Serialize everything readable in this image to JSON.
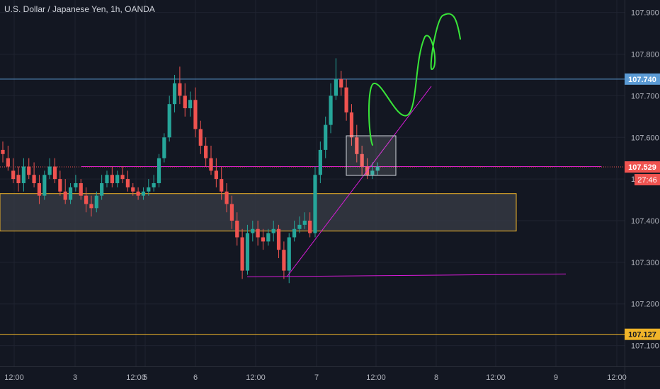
{
  "header": {
    "title": "U.S. Dollar / Japanese Yen, 1h, OANDA"
  },
  "colors": {
    "background": "#131722",
    "grid": "#1f2330",
    "axis_text": "#b2b5be",
    "bull": "#26a69a",
    "bear": "#ef5350",
    "resistance_line": "#5b9bd5",
    "support_line": "#f0b429",
    "zone_border": "#f0b429",
    "zone_fill": "#3a3d47",
    "magenta": "#d81bd8",
    "arrow": "#39e639",
    "price_badge": "#ef5350",
    "resistance_badge": "#5b9bd5",
    "support_badge": "#f0b429"
  },
  "chart_data": {
    "type": "candlestick",
    "title": "U.S. Dollar / Japanese Yen, 1h, OANDA",
    "ylim": [
      107.05,
      107.93
    ],
    "y_ticks": [
      "107.900",
      "107.800",
      "107.700",
      "107.600",
      "107.500",
      "107.400",
      "107.300",
      "107.200",
      "107.100"
    ],
    "x_ticks": [
      "12:00",
      "3",
      "12:00",
      "5",
      "6",
      "12:00",
      "7",
      "12:00",
      "8",
      "12:00",
      "9",
      "12:00"
    ],
    "annotations": {
      "resistance": 107.74,
      "resistance_label": "107.740",
      "support": 107.127,
      "support_label": "107.127",
      "last_price": 107.529,
      "last_price_label": "107.529",
      "countdown": "27:46",
      "horizontal_magenta": 107.53,
      "zone_top": 107.465,
      "zone_bottom": 107.375,
      "bottom_line_left": 107.265,
      "bottom_line_right": 107.272
    },
    "candles": [
      [
        107.57,
        107.59,
        107.56,
        107.54
      ],
      [
        107.55,
        107.58,
        107.53,
        107.52
      ],
      [
        107.52,
        107.55,
        107.5,
        107.49
      ],
      [
        107.51,
        107.53,
        107.49,
        107.47
      ],
      [
        107.49,
        107.55,
        107.53,
        107.47
      ],
      [
        107.53,
        107.55,
        107.51,
        107.5
      ],
      [
        107.51,
        107.54,
        107.49,
        107.48
      ],
      [
        107.49,
        107.51,
        107.46,
        107.44
      ],
      [
        107.46,
        107.52,
        107.51,
        107.45
      ],
      [
        107.51,
        107.55,
        107.53,
        107.5
      ],
      [
        107.53,
        107.55,
        107.5,
        107.49
      ],
      [
        107.5,
        107.52,
        107.47,
        107.46
      ],
      [
        107.47,
        107.5,
        107.45,
        107.44
      ],
      [
        107.45,
        107.49,
        107.48,
        107.44
      ],
      [
        107.48,
        107.51,
        107.49,
        107.47
      ],
      [
        107.49,
        107.5,
        107.46,
        107.45
      ],
      [
        107.46,
        107.48,
        107.44,
        107.42
      ],
      [
        107.44,
        107.46,
        107.43,
        107.41
      ],
      [
        107.43,
        107.47,
        107.46,
        107.42
      ],
      [
        107.46,
        107.51,
        107.49,
        107.45
      ],
      [
        107.49,
        107.52,
        107.51,
        107.48
      ],
      [
        107.51,
        107.53,
        107.49,
        107.48
      ],
      [
        107.49,
        107.52,
        107.51,
        107.48
      ],
      [
        107.51,
        107.53,
        107.5,
        107.49
      ],
      [
        107.5,
        107.52,
        107.48,
        107.47
      ],
      [
        107.48,
        107.49,
        107.47,
        107.46
      ],
      [
        107.47,
        107.48,
        107.46,
        107.45
      ],
      [
        107.46,
        107.48,
        107.47,
        107.45
      ],
      [
        107.47,
        107.5,
        107.48,
        107.46
      ],
      [
        107.48,
        107.51,
        107.49,
        107.47
      ],
      [
        107.49,
        107.56,
        107.55,
        107.48
      ],
      [
        107.55,
        107.61,
        107.6,
        107.54
      ],
      [
        107.6,
        107.7,
        107.68,
        107.59
      ],
      [
        107.68,
        107.75,
        107.73,
        107.66
      ],
      [
        107.73,
        107.77,
        107.7,
        107.68
      ],
      [
        107.7,
        107.73,
        107.67,
        107.65
      ],
      [
        107.67,
        107.71,
        107.69,
        107.65
      ],
      [
        107.69,
        107.72,
        107.62,
        107.6
      ],
      [
        107.62,
        107.64,
        107.58,
        107.56
      ],
      [
        107.58,
        107.6,
        107.55,
        107.53
      ],
      [
        107.55,
        107.58,
        107.52,
        107.51
      ],
      [
        107.52,
        107.55,
        107.5,
        107.48
      ],
      [
        107.5,
        107.53,
        107.47,
        107.45
      ],
      [
        107.47,
        107.49,
        107.44,
        107.42
      ],
      [
        107.44,
        107.46,
        107.4,
        107.38
      ],
      [
        107.4,
        107.42,
        107.36,
        107.34
      ],
      [
        107.36,
        107.38,
        107.28,
        107.26
      ],
      [
        107.28,
        107.39,
        107.37,
        107.27
      ],
      [
        107.37,
        107.4,
        107.38,
        107.35
      ],
      [
        107.38,
        107.4,
        107.36,
        107.34
      ],
      [
        107.36,
        107.38,
        107.35,
        107.33
      ],
      [
        107.35,
        107.38,
        107.37,
        107.34
      ],
      [
        107.37,
        107.4,
        107.38,
        107.35
      ],
      [
        107.38,
        107.39,
        107.33,
        107.31
      ],
      [
        107.33,
        107.35,
        107.28,
        107.26
      ],
      [
        107.28,
        107.37,
        107.36,
        107.25
      ],
      [
        107.36,
        107.4,
        107.38,
        107.35
      ],
      [
        107.38,
        107.41,
        107.39,
        107.37
      ],
      [
        107.39,
        107.42,
        107.4,
        107.38
      ],
      [
        107.4,
        107.42,
        107.37,
        107.36
      ],
      [
        107.37,
        107.53,
        107.51,
        107.36
      ],
      [
        107.51,
        107.59,
        107.57,
        107.49
      ],
      [
        107.57,
        107.65,
        107.63,
        107.55
      ],
      [
        107.63,
        107.73,
        107.7,
        107.61
      ],
      [
        107.7,
        107.79,
        107.74,
        107.69
      ],
      [
        107.74,
        107.76,
        107.72,
        107.7
      ],
      [
        107.72,
        107.74,
        107.66,
        107.64
      ],
      [
        107.66,
        107.68,
        107.6,
        107.58
      ],
      [
        107.6,
        107.63,
        107.56,
        107.54
      ],
      [
        107.56,
        107.58,
        107.53,
        107.51
      ],
      [
        107.53,
        107.55,
        107.51,
        107.5
      ],
      [
        107.51,
        107.54,
        107.52,
        107.5
      ],
      [
        107.52,
        107.54,
        107.53,
        107.51
      ]
    ]
  }
}
